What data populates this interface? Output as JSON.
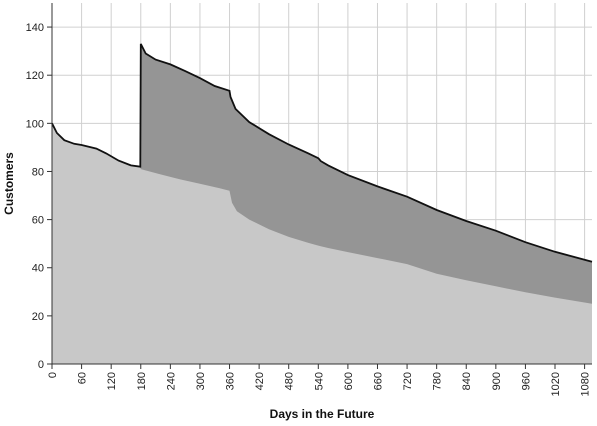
{
  "chart_data": {
    "type": "area",
    "title": "",
    "xlabel": "Days in the Future",
    "ylabel": "Customers",
    "xlim": [
      0,
      1095
    ],
    "ylim": [
      0,
      150
    ],
    "grid": true,
    "x_ticks": [
      0,
      60,
      120,
      180,
      240,
      300,
      360,
      420,
      480,
      540,
      600,
      660,
      720,
      780,
      840,
      900,
      960,
      1020,
      1080
    ],
    "y_ticks": [
      0,
      20,
      40,
      60,
      80,
      100,
      120,
      140
    ],
    "x_tick_labels": [
      "0",
      "60",
      "120",
      "180",
      "240",
      "300",
      "360",
      "420",
      "480",
      "540",
      "600",
      "660",
      "720",
      "780",
      "840",
      "900",
      "960",
      "1020",
      "1080"
    ],
    "y_tick_labels": [
      "0",
      "20",
      "40",
      "60",
      "80",
      "100",
      "120",
      "140"
    ],
    "colors": {
      "lower": "#c8c8c8",
      "upper": "#959595",
      "line": "#111111",
      "grid": "#d0d0d0"
    },
    "series": [
      {
        "x": [
          0,
          10,
          25,
          45,
          60,
          90,
          110,
          135,
          160,
          179,
          180,
          220,
          260,
          300,
          340,
          360,
          365,
          375,
          400,
          440,
          480,
          520,
          540,
          545,
          560,
          600,
          660,
          720,
          780,
          840,
          900,
          960,
          1020,
          1095
        ],
        "values": [
          100,
          96,
          93,
          91.5,
          91,
          89.5,
          87.5,
          84.5,
          82.5,
          82,
          81,
          78.8,
          76.7,
          74.9,
          73,
          72,
          67,
          63.5,
          60,
          56,
          52.8,
          50.3,
          49.2,
          48.9,
          48.2,
          46.5,
          44,
          41.5,
          37.5,
          34.8,
          32.3,
          29.8,
          27.6,
          25
        ]
      },
      {
        "x": [
          0,
          10,
          25,
          45,
          60,
          90,
          110,
          135,
          160,
          179,
          180,
          190,
          210,
          240,
          270,
          300,
          330,
          360,
          362,
          372,
          400,
          440,
          480,
          520,
          540,
          545,
          560,
          600,
          660,
          720,
          780,
          840,
          900,
          960,
          1020,
          1095
        ],
        "values": [
          100,
          96,
          93,
          91.5,
          91,
          89.5,
          87.5,
          84.5,
          82.5,
          82,
          133,
          129,
          126.5,
          124.5,
          121.7,
          118.8,
          115.5,
          113.5,
          111,
          106,
          100.5,
          95.5,
          91.2,
          87.5,
          85.5,
          84.3,
          82.5,
          78.5,
          73.8,
          69.5,
          64,
          59.4,
          55.4,
          50.6,
          46.6,
          42.5
        ]
      }
    ]
  }
}
